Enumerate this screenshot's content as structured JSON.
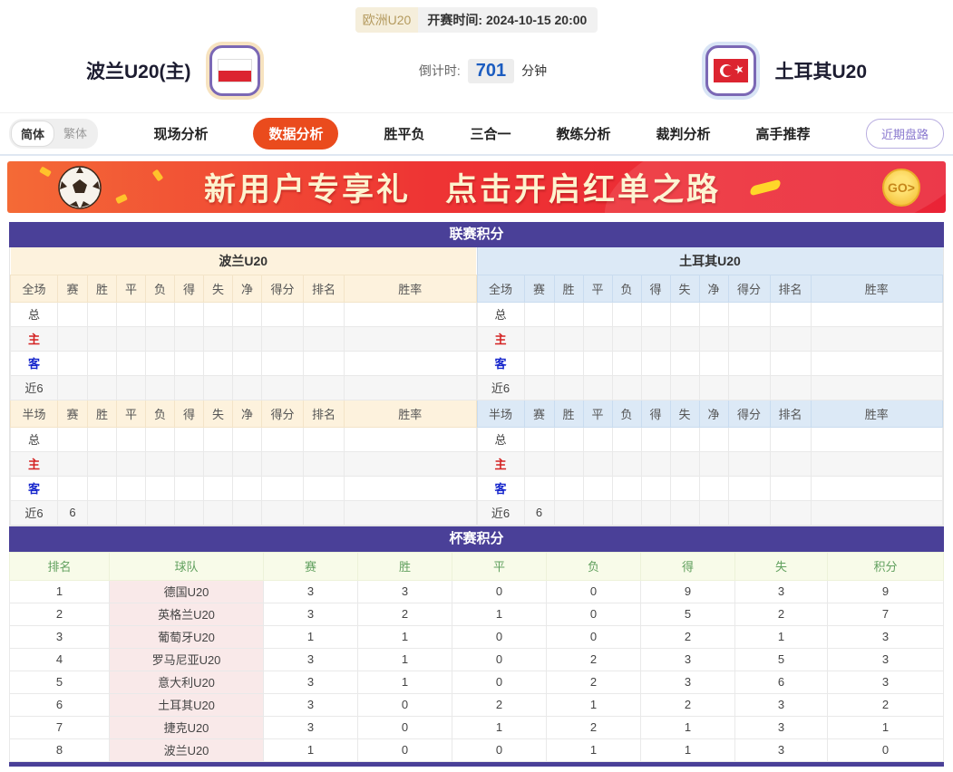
{
  "header": {
    "league_badge": "欧洲U20",
    "kickoff_label": "开赛时间:",
    "kickoff_time": "2024-10-15 20:00",
    "home_team": "波兰U20(主)",
    "away_team": "土耳其U20",
    "countdown_label": "倒计时:",
    "countdown_value": "701",
    "countdown_unit": "分钟"
  },
  "nav": {
    "lang_simplified": "简体",
    "lang_traditional": "繁体",
    "tabs": [
      "现场分析",
      "数据分析",
      "胜平负",
      "三合一",
      "教练分析",
      "裁判分析",
      "高手推荐"
    ],
    "active_tab": "数据分析",
    "recent_button": "近期盘路"
  },
  "banner": {
    "text1": "新用户专享礼",
    "text2": "点击开启红单之路",
    "go_label": "GO>"
  },
  "league_section": {
    "title": "联赛积分",
    "home_team": "波兰U20",
    "away_team": "土耳其U20",
    "full_label": "全场",
    "half_label": "半场",
    "columns": [
      "赛",
      "胜",
      "平",
      "负",
      "得",
      "失",
      "净",
      "得分",
      "排名",
      "胜率"
    ],
    "row_labels": [
      "总",
      "主",
      "客",
      "近6"
    ],
    "full_rows_home": [
      [
        "",
        "",
        "",
        "",
        "",
        "",
        "",
        "",
        "",
        ""
      ],
      [
        "",
        "",
        "",
        "",
        "",
        "",
        "",
        "",
        "",
        ""
      ],
      [
        "",
        "",
        "",
        "",
        "",
        "",
        "",
        "",
        "",
        ""
      ],
      [
        "",
        "",
        "",
        "",
        "",
        "",
        "",
        "",
        "",
        ""
      ]
    ],
    "full_rows_away": [
      [
        "",
        "",
        "",
        "",
        "",
        "",
        "",
        "",
        "",
        ""
      ],
      [
        "",
        "",
        "",
        "",
        "",
        "",
        "",
        "",
        "",
        ""
      ],
      [
        "",
        "",
        "",
        "",
        "",
        "",
        "",
        "",
        "",
        ""
      ],
      [
        "",
        "",
        "",
        "",
        "",
        "",
        "",
        "",
        "",
        ""
      ]
    ],
    "half_rows_home": [
      [
        "",
        "",
        "",
        "",
        "",
        "",
        "",
        "",
        "",
        ""
      ],
      [
        "",
        "",
        "",
        "",
        "",
        "",
        "",
        "",
        "",
        ""
      ],
      [
        "",
        "",
        "",
        "",
        "",
        "",
        "",
        "",
        "",
        ""
      ],
      [
        "6",
        "",
        "",
        "",
        "",
        "",
        "",
        "",
        "",
        ""
      ]
    ],
    "half_rows_away": [
      [
        "",
        "",
        "",
        "",
        "",
        "",
        "",
        "",
        "",
        ""
      ],
      [
        "",
        "",
        "",
        "",
        "",
        "",
        "",
        "",
        "",
        ""
      ],
      [
        "",
        "",
        "",
        "",
        "",
        "",
        "",
        "",
        "",
        ""
      ],
      [
        "6",
        "",
        "",
        "",
        "",
        "",
        "",
        "",
        "",
        ""
      ]
    ]
  },
  "cup_section": {
    "title": "杯赛积分",
    "columns": [
      "排名",
      "球队",
      "赛",
      "胜",
      "平",
      "负",
      "得",
      "失",
      "积分"
    ],
    "rows": [
      {
        "rank": "1",
        "team": "德国U20",
        "values": [
          "3",
          "3",
          "0",
          "0",
          "9",
          "3",
          "9"
        ]
      },
      {
        "rank": "2",
        "team": "英格兰U20",
        "values": [
          "3",
          "2",
          "1",
          "0",
          "5",
          "2",
          "7"
        ]
      },
      {
        "rank": "3",
        "team": "葡萄牙U20",
        "values": [
          "1",
          "1",
          "0",
          "0",
          "2",
          "1",
          "3"
        ]
      },
      {
        "rank": "4",
        "team": "罗马尼亚U20",
        "values": [
          "3",
          "1",
          "0",
          "2",
          "3",
          "5",
          "3"
        ]
      },
      {
        "rank": "5",
        "team": "意大利U20",
        "values": [
          "3",
          "1",
          "0",
          "2",
          "3",
          "6",
          "3"
        ]
      },
      {
        "rank": "6",
        "team": "土耳其U20",
        "values": [
          "3",
          "0",
          "2",
          "1",
          "2",
          "3",
          "2"
        ]
      },
      {
        "rank": "7",
        "team": "捷克U20",
        "values": [
          "3",
          "0",
          "1",
          "2",
          "1",
          "3",
          "1"
        ]
      },
      {
        "rank": "8",
        "team": "波兰U20",
        "values": [
          "1",
          "0",
          "0",
          "1",
          "1",
          "3",
          "0"
        ]
      }
    ]
  },
  "colors": {
    "section_header_purple": "#4a4098",
    "active_tab_orange": "#ea4b1d",
    "banner_red": "#ee3434",
    "home_header_cream": "#fdf2dd",
    "away_header_blue": "#dce9f6",
    "cup_header_green_bg": "#f8fbe9",
    "cup_header_green_text": "#61a05e",
    "team_cell_pink": "#f9e9e9",
    "countdown_blue": "#1b5cc0",
    "home_row_red": "#d42222",
    "away_row_blue": "#1525cc",
    "league_badge_tan": "#b49a5e"
  }
}
